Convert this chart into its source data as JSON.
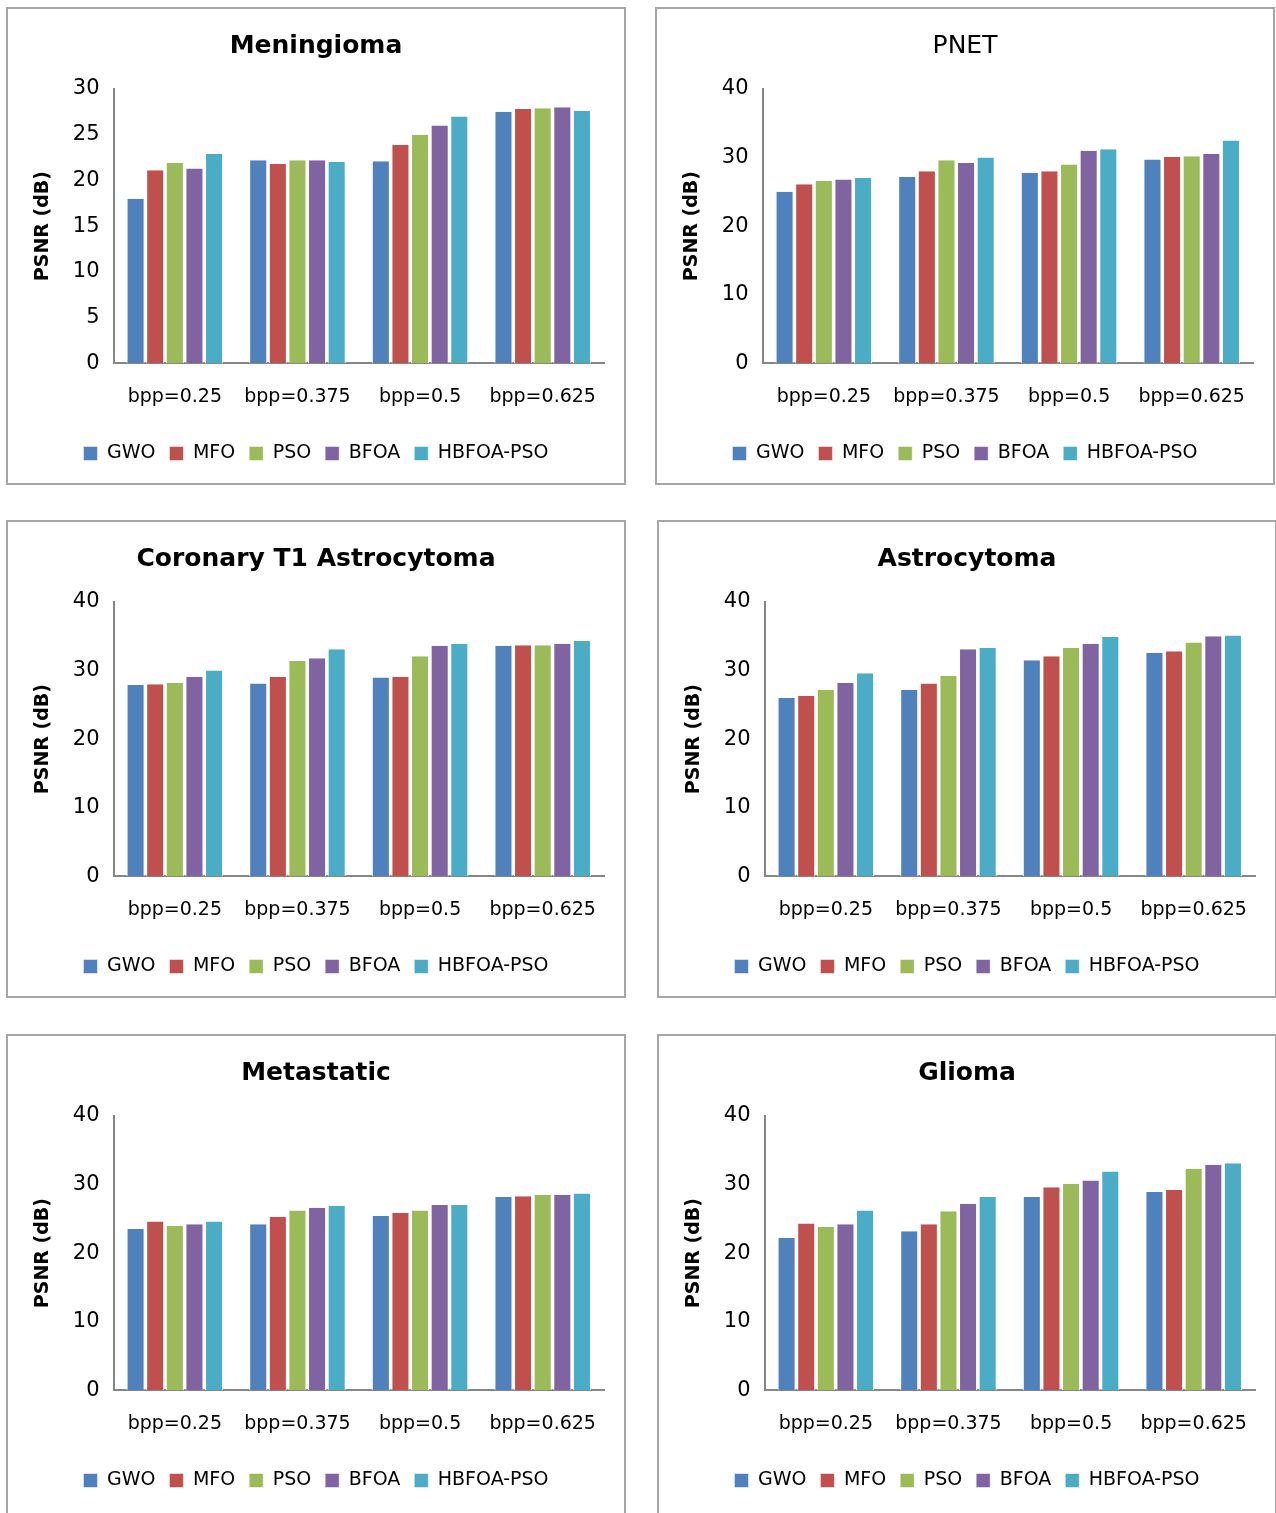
{
  "chart_data": [
    {
      "type": "bar",
      "title": "Meningioma",
      "ylabel": "PSNR (dB)",
      "categories": [
        "bpp=0.25",
        "bpp=0.375",
        "bpp=0.5",
        "bpp=0.625"
      ],
      "ylim": [
        0,
        30
      ],
      "yticks": [
        0,
        5,
        10,
        15,
        20,
        25,
        30
      ],
      "grid": false,
      "legend": "bottom",
      "series": [
        {
          "name": "GWO",
          "color": "#4f81bd",
          "values": [
            18,
            22.2,
            22.1,
            27.5
          ]
        },
        {
          "name": "MFO",
          "color": "#c0504d",
          "values": [
            21.1,
            21.8,
            23.9,
            27.8
          ]
        },
        {
          "name": "PSO",
          "color": "#9bbb59",
          "values": [
            21.9,
            22.2,
            25,
            27.9
          ]
        },
        {
          "name": "BFOA",
          "color": "#8064a2",
          "values": [
            21.3,
            22.2,
            26,
            28
          ]
        },
        {
          "name": "HBFOA-PSO",
          "color": "#4bacc6",
          "values": [
            22.9,
            22,
            27,
            27.6
          ]
        }
      ]
    },
    {
      "type": "bar",
      "title": "PNET",
      "ylabel": "PSNR (dB)",
      "categories": [
        "bpp=0.25",
        "bpp=0.375",
        "bpp=0.5",
        "bpp=0.625"
      ],
      "ylim": [
        0,
        40
      ],
      "yticks": [
        0,
        10,
        20,
        30,
        40
      ],
      "grid": false,
      "legend": "bottom",
      "series": [
        {
          "name": "GWO",
          "color": "#4f81bd",
          "values": [
            25,
            27.2,
            27.8,
            29.7
          ]
        },
        {
          "name": "MFO",
          "color": "#c0504d",
          "values": [
            26.1,
            28,
            28,
            30.1
          ]
        },
        {
          "name": "PSO",
          "color": "#9bbb59",
          "values": [
            26.6,
            29.6,
            29,
            30.2
          ]
        },
        {
          "name": "BFOA",
          "color": "#8064a2",
          "values": [
            26.8,
            29.2,
            31,
            30.5
          ]
        },
        {
          "name": "HBFOA-PSO",
          "color": "#4bacc6",
          "values": [
            27,
            30,
            31.2,
            32.5
          ]
        }
      ]
    },
    {
      "type": "bar",
      "title": "Coronary T1 Astrocytoma",
      "ylabel": "PSNR (dB)",
      "categories": [
        "bpp=0.25",
        "bpp=0.375",
        "bpp=0.5",
        "bpp=0.625"
      ],
      "ylim": [
        0,
        40
      ],
      "yticks": [
        0,
        10,
        20,
        30,
        40
      ],
      "grid": false,
      "legend": "bottom",
      "series": [
        {
          "name": "GWO",
          "color": "#4f81bd",
          "values": [
            27.9,
            28.1,
            29,
            33.6
          ]
        },
        {
          "name": "MFO",
          "color": "#c0504d",
          "values": [
            28,
            29.1,
            29.1,
            33.7
          ]
        },
        {
          "name": "PSO",
          "color": "#9bbb59",
          "values": [
            28.2,
            31.4,
            32.1,
            33.7
          ]
        },
        {
          "name": "BFOA",
          "color": "#8064a2",
          "values": [
            29.1,
            31.8,
            33.6,
            33.9
          ]
        },
        {
          "name": "HBFOA-PSO",
          "color": "#4bacc6",
          "values": [
            30,
            33.1,
            33.9,
            34.3
          ]
        }
      ]
    },
    {
      "type": "bar",
      "title": "Astrocytoma",
      "ylabel": "PSNR (dB)",
      "categories": [
        "bpp=0.25",
        "bpp=0.375",
        "bpp=0.5",
        "bpp=0.625"
      ],
      "ylim": [
        0,
        40
      ],
      "yticks": [
        0,
        10,
        20,
        30,
        40
      ],
      "grid": false,
      "legend": "bottom",
      "series": [
        {
          "name": "GWO",
          "color": "#4f81bd",
          "values": [
            26,
            27.2,
            31.5,
            32.6
          ]
        },
        {
          "name": "MFO",
          "color": "#c0504d",
          "values": [
            26.3,
            28.1,
            32.1,
            32.8
          ]
        },
        {
          "name": "PSO",
          "color": "#9bbb59",
          "values": [
            27.2,
            29.2,
            33.3,
            34.1
          ]
        },
        {
          "name": "BFOA",
          "color": "#8064a2",
          "values": [
            28.2,
            33.1,
            33.9,
            35
          ]
        },
        {
          "name": "HBFOA-PSO",
          "color": "#4bacc6",
          "values": [
            29.6,
            33.3,
            34.9,
            35.1
          ]
        }
      ]
    },
    {
      "type": "bar",
      "title": "Metastatic",
      "ylabel": "PSNR (dB)",
      "categories": [
        "bpp=0.25",
        "bpp=0.375",
        "bpp=0.5",
        "bpp=0.625"
      ],
      "ylim": [
        0,
        40
      ],
      "yticks": [
        0,
        10,
        20,
        30,
        40
      ],
      "grid": false,
      "legend": "bottom",
      "series": [
        {
          "name": "GWO",
          "color": "#4f81bd",
          "values": [
            23.5,
            24.2,
            25.4,
            28.2
          ]
        },
        {
          "name": "MFO",
          "color": "#c0504d",
          "values": [
            24.6,
            25.3,
            25.9,
            28.3
          ]
        },
        {
          "name": "PSO",
          "color": "#9bbb59",
          "values": [
            24,
            26.2,
            26.2,
            28.5
          ]
        },
        {
          "name": "BFOA",
          "color": "#8064a2",
          "values": [
            24.2,
            26.6,
            27,
            28.5
          ]
        },
        {
          "name": "HBFOA-PSO",
          "color": "#4bacc6",
          "values": [
            24.6,
            26.9,
            27,
            28.7
          ]
        }
      ]
    },
    {
      "type": "bar",
      "title": "Glioma",
      "ylabel": "PSNR (dB)",
      "categories": [
        "bpp=0.25",
        "bpp=0.375",
        "bpp=0.5",
        "bpp=0.625"
      ],
      "ylim": [
        0,
        40
      ],
      "yticks": [
        0,
        10,
        20,
        30,
        40
      ],
      "grid": false,
      "legend": "bottom",
      "series": [
        {
          "name": "GWO",
          "color": "#4f81bd",
          "values": [
            22.2,
            23.2,
            28.2,
            28.9
          ]
        },
        {
          "name": "MFO",
          "color": "#c0504d",
          "values": [
            24.3,
            24.2,
            29.6,
            29.2
          ]
        },
        {
          "name": "PSO",
          "color": "#9bbb59",
          "values": [
            23.8,
            26.1,
            30.1,
            32.3
          ]
        },
        {
          "name": "BFOA",
          "color": "#8064a2",
          "values": [
            24.2,
            27.2,
            30.6,
            32.9
          ]
        },
        {
          "name": "HBFOA-PSO",
          "color": "#4bacc6",
          "values": [
            26.2,
            28.2,
            31.9,
            33.1
          ]
        }
      ]
    }
  ]
}
